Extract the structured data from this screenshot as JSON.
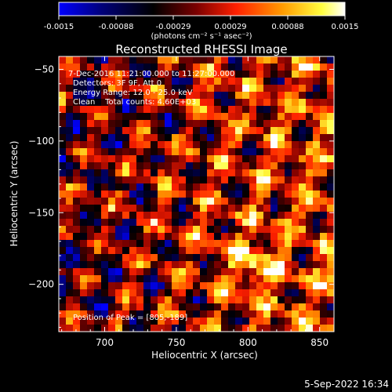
{
  "title": "Reconstructed RHESSI Image",
  "colorbar": {
    "tick_labels": [
      "-0.0015",
      "-0.00088",
      "-0.00029",
      "0.00029",
      "0.00088",
      "0.0015"
    ],
    "unit_label": "(photons cm⁻² s⁻¹ asec⁻²)",
    "vmin": -0.0015,
    "vmax": 0.0015,
    "colors": [
      "#0000ff",
      "#00007a",
      "#000000",
      "#7a0000",
      "#ff2000",
      "#ff9a00",
      "#ffff40",
      "#ffffff"
    ]
  },
  "annotations": {
    "time_range": "7-Dec-2016 11:21:00.000 to 11:27:00.000",
    "detectors": "Detectors: 3F 9F, Att 0",
    "energy": "Energy Range: 12.0 - 25.0 keV",
    "clean": "Clean    Total counts: 4.60E+03",
    "peak": "Position of Peak = [805,-189]"
  },
  "footer": {
    "timestamp": "5-Sep-2022 16:34"
  },
  "chart_data": {
    "type": "heatmap",
    "title": "Reconstructed RHESSI Image",
    "xlabel": "Heliocentric X (arcsec)",
    "ylabel": "Heliocentric Y (arcsec)",
    "xlim": [
      668,
      860
    ],
    "ylim": [
      -233,
      -41
    ],
    "xticks": [
      700,
      750,
      800,
      850
    ],
    "yticks": [
      -50,
      -100,
      -150,
      -200
    ],
    "xtick_labels": [
      "700",
      "750",
      "800",
      "850"
    ],
    "ytick_labels": [
      "−50",
      "−100",
      "−150",
      "−200"
    ],
    "grid": false,
    "peak_position": [
      805,
      -189
    ]
  }
}
